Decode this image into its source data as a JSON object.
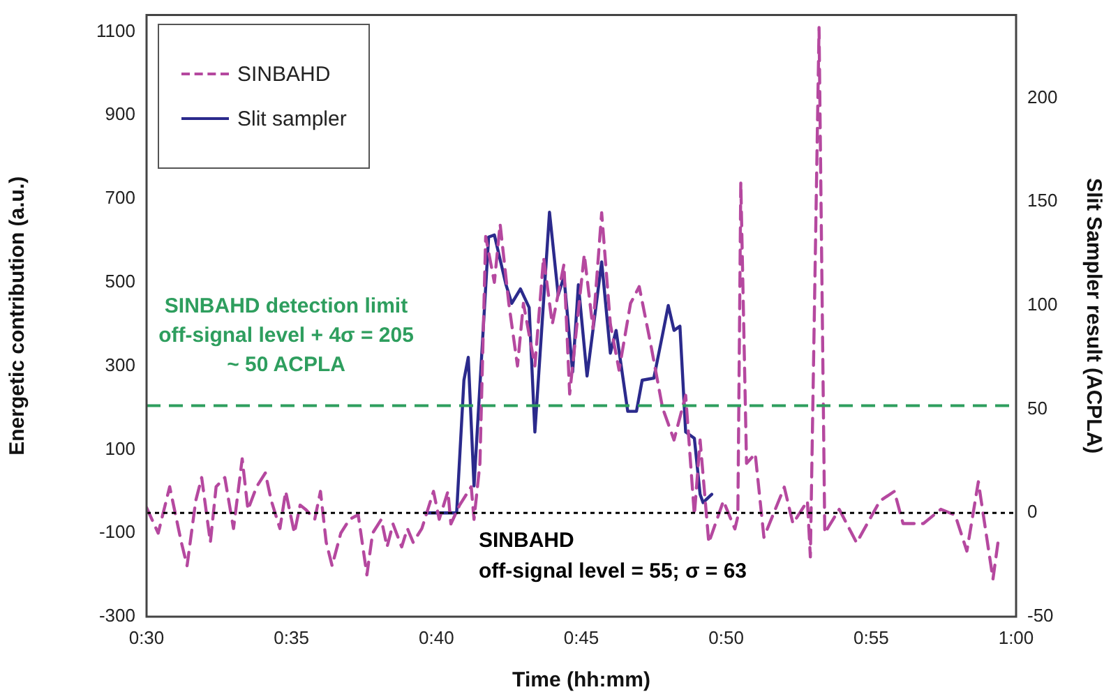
{
  "chart_data": {
    "type": "line",
    "xlabel": "Time (hh:mm)",
    "ylabel": "Energetic contribution (a.u.)",
    "y2label": "Slit Sampler result (ACPLA)",
    "xlim": [
      0.5,
      1
    ],
    "xticks": [
      {
        "value": 0.5,
        "label": "0:30"
      },
      {
        "value": 0.5833,
        "label": "0:35"
      },
      {
        "value": 0.6667,
        "label": "0:40"
      },
      {
        "value": 0.75,
        "label": "0:45"
      },
      {
        "value": 0.8333,
        "label": "0:50"
      },
      {
        "value": 0.9167,
        "label": "0:55"
      },
      {
        "value": 1,
        "label": "1:00"
      }
    ],
    "ylim": [
      -300,
      1140
    ],
    "yticks": [
      -300,
      -100,
      100,
      300,
      500,
      700,
      900,
      1100
    ],
    "y2lim": [
      -50,
      240
    ],
    "y2ticks": [
      -50,
      0,
      50,
      100,
      150,
      200
    ],
    "grid": false,
    "legend": "top left",
    "marker": "none",
    "series": [
      {
        "name": "SINBAHD",
        "color": "#b5489f",
        "line_style": "dashed",
        "x": [
          0.5,
          0.5067,
          0.5133,
          0.52,
          0.5233,
          0.5283,
          0.5317,
          0.5367,
          0.54,
          0.545,
          0.55,
          0.555,
          0.5583,
          0.5633,
          0.5683,
          0.5717,
          0.5767,
          0.58,
          0.585,
          0.5883,
          0.5917,
          0.5967,
          0.6,
          0.6033,
          0.6067,
          0.6117,
          0.6167,
          0.6217,
          0.6267,
          0.63,
          0.635,
          0.6383,
          0.6417,
          0.6467,
          0.65,
          0.6533,
          0.6583,
          0.6617,
          0.665,
          0.6683,
          0.6733,
          0.675,
          0.68,
          0.6867,
          0.6883,
          0.6917,
          0.695,
          0.7,
          0.7033,
          0.7083,
          0.7133,
          0.7167,
          0.7233,
          0.7283,
          0.7333,
          0.74,
          0.7433,
          0.7517,
          0.7567,
          0.7617,
          0.7667,
          0.7717,
          0.7783,
          0.7833,
          0.79,
          0.7967,
          0.8033,
          0.81,
          0.815,
          0.8183,
          0.8233,
          0.8317,
          0.8383,
          0.84,
          0.8417,
          0.845,
          0.85,
          0.855,
          0.8667,
          0.8717,
          0.88,
          0.8817,
          0.8867,
          0.89,
          0.8983,
          0.9083,
          0.9217,
          0.93,
          0.935,
          0.9467,
          0.9567,
          0.965,
          0.9717,
          0.9783,
          0.9867,
          0.99
        ],
        "values": [
          -39,
          -100,
          11,
          -122,
          -178,
          -22,
          33,
          -122,
          11,
          33,
          -89,
          78,
          -44,
          11,
          44,
          -22,
          -89,
          0,
          -100,
          -33,
          -44,
          -67,
          0,
          -122,
          -178,
          -100,
          -67,
          -56,
          -200,
          -100,
          -67,
          -133,
          -78,
          -133,
          -89,
          -122,
          -89,
          -44,
          0,
          -67,
          0,
          -78,
          -33,
          11,
          -67,
          67,
          610,
          500,
          640,
          450,
          300,
          450,
          300,
          560,
          400,
          543,
          233,
          567,
          390,
          667,
          400,
          290,
          450,
          490,
          350,
          200,
          123,
          230,
          -57,
          123,
          -123,
          -23,
          -90,
          -60,
          740,
          67,
          90,
          -110,
          10,
          -77,
          -23,
          -157,
          1110,
          -100,
          -43,
          -123,
          -23,
          0,
          -77,
          -77,
          -43,
          -57,
          -143,
          23,
          -210,
          -110
        ]
      },
      {
        "name": "Slit sampler",
        "color": "#2b2a8c",
        "line_style": "solid",
        "axis": "y2",
        "x": [
          0.66,
          0.6783,
          0.6825,
          0.685,
          0.6883,
          0.6967,
          0.7,
          0.7067,
          0.71,
          0.715,
          0.72,
          0.7233,
          0.7317,
          0.7367,
          0.74,
          0.745,
          0.7483,
          0.7533,
          0.7617,
          0.7667,
          0.77,
          0.7767,
          0.7817,
          0.785,
          0.7917,
          0.7967,
          0.8,
          0.8033,
          0.8067,
          0.81,
          0.815,
          0.8183,
          0.82,
          0.825
        ],
        "values": [
          0,
          0,
          64,
          75,
          13,
          133,
          134,
          110,
          101,
          108,
          99,
          39,
          145,
          105,
          114,
          68,
          110,
          66,
          121,
          77,
          88,
          49,
          49,
          64,
          65,
          86,
          100,
          88,
          90,
          39,
          36,
          9,
          5,
          9
        ]
      }
    ],
    "ref_lines": [
      {
        "axis": "y",
        "value": 205,
        "label": "SINBAHD detection limit\noff-signal level + 4σ = 205\n~ 50 ACPLA",
        "color": "#2e9e5e",
        "line_style": "dashed"
      },
      {
        "axis": "y2",
        "value": 0,
        "color": "#000000",
        "line_style": "dotted"
      }
    ],
    "annotations": [
      "SINBAHD\noff-signal level = 55; σ = 63"
    ]
  }
}
